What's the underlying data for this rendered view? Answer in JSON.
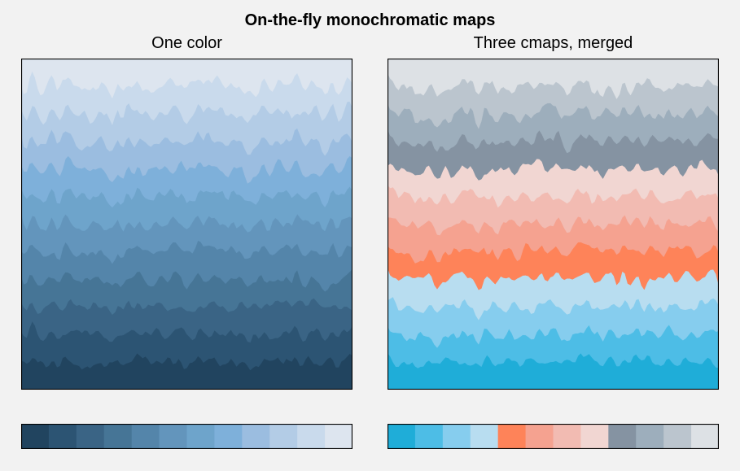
{
  "figure": {
    "title": "On-the-fly monochromatic maps"
  },
  "chart_data": [
    {
      "type": "heatmap",
      "title": "One color",
      "xlabel": "",
      "ylabel": "",
      "levels": 12,
      "bands_bottom_to_top": [
        "#21445f",
        "#2c5473",
        "#3a6485",
        "#467596",
        "#5485aa",
        "#6395bc",
        "#6ea4cb",
        "#7eb0da",
        "#9bbde0",
        "#b3cce6",
        "#c9daec",
        "#dde5ef"
      ],
      "colorbar": {
        "ticks": "none",
        "colors": [
          "#21445f",
          "#2c5473",
          "#3a6485",
          "#467596",
          "#5485aa",
          "#6395bc",
          "#6ea4cb",
          "#7eb0da",
          "#9bbde0",
          "#b3cce6",
          "#c9daec",
          "#dde5ef"
        ]
      }
    },
    {
      "type": "heatmap",
      "title": "Three cmaps, merged",
      "xlabel": "",
      "ylabel": "",
      "levels": 12,
      "bands_bottom_to_top": [
        "#1fadd8",
        "#4dbde6",
        "#86cdee",
        "#b8ddf0",
        "#fe8359",
        "#f5a290",
        "#f2bbb2",
        "#f1d6d2",
        "#8593a2",
        "#9daebc",
        "#bbc5ce",
        "#dde1e5"
      ],
      "colorbar": {
        "ticks": "none",
        "colors": [
          "#1fadd8",
          "#4dbde6",
          "#86cdee",
          "#b8ddf0",
          "#fe8359",
          "#f5a290",
          "#f2bbb2",
          "#f1d6d2",
          "#8593a2",
          "#9daebc",
          "#bbc5ce",
          "#dde1e5"
        ]
      }
    }
  ]
}
